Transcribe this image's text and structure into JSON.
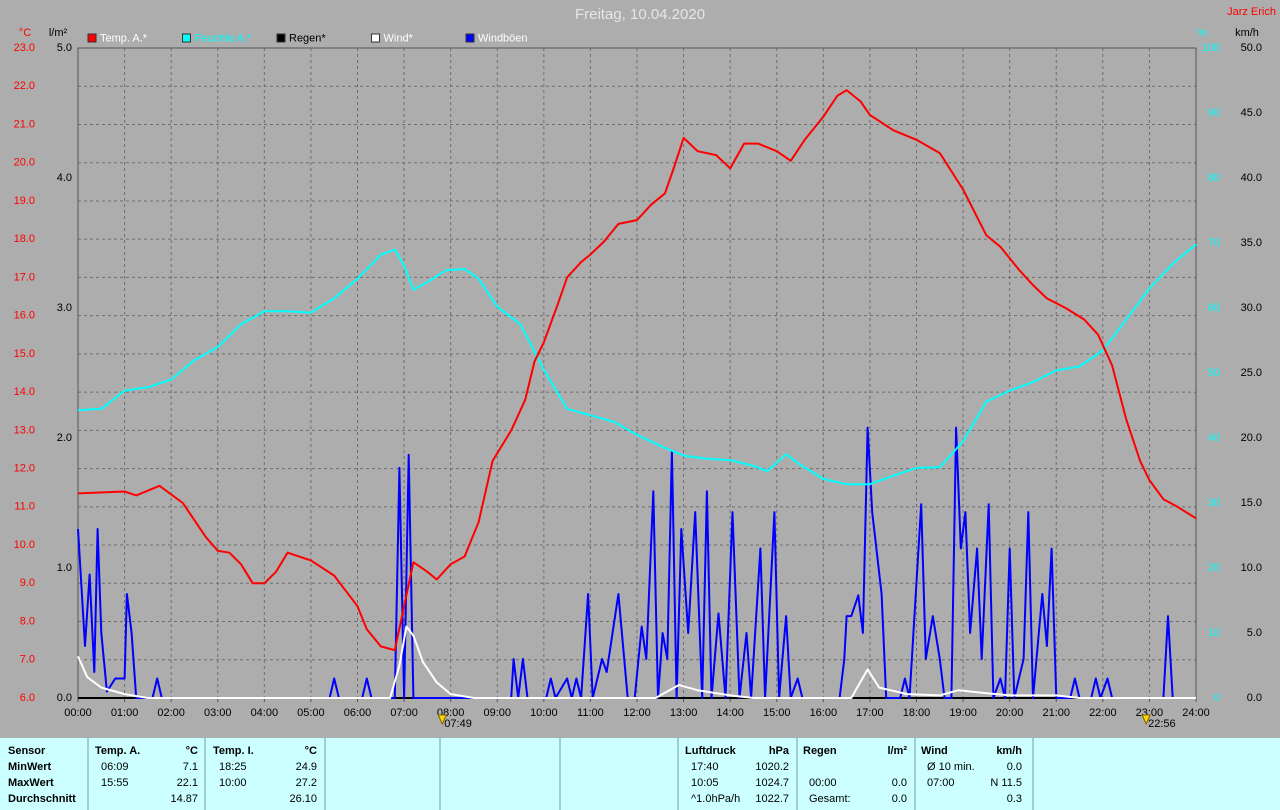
{
  "chart_data": {
    "type": "line",
    "title": "Freitag, 10.04.2020",
    "author": "Jarz Erich",
    "ylabel": "°C",
    "y2label": "l/m²",
    "y3label": "%",
    "y4label": "km/h",
    "xlim": [
      0,
      24
    ],
    "xticks": [
      {
        "value": 0,
        "label": "00:00"
      },
      {
        "value": 1,
        "label": "01:00"
      },
      {
        "value": 2,
        "label": "02:00"
      },
      {
        "value": 3,
        "label": "03:00"
      },
      {
        "value": 4,
        "label": "04:00"
      },
      {
        "value": 5,
        "label": "05:00"
      },
      {
        "value": 6,
        "label": "06:00"
      },
      {
        "value": 7,
        "label": "07:00"
      },
      {
        "value": 8,
        "label": "08:00"
      },
      {
        "value": 9,
        "label": "09:00"
      },
      {
        "value": 10,
        "label": "10:00"
      },
      {
        "value": 11,
        "label": "11:00"
      },
      {
        "value": 12,
        "label": "12:00"
      },
      {
        "value": 13,
        "label": "13:00"
      },
      {
        "value": 14,
        "label": "14:00"
      },
      {
        "value": 15,
        "label": "15:00"
      },
      {
        "value": 16,
        "label": "16:00"
      },
      {
        "value": 17,
        "label": "17:00"
      },
      {
        "value": 18,
        "label": "18:00"
      },
      {
        "value": 19,
        "label": "19:00"
      },
      {
        "value": 20,
        "label": "20:00"
      },
      {
        "value": 21,
        "label": "21:00"
      },
      {
        "value": 22,
        "label": "22:00"
      },
      {
        "value": 23,
        "label": "23:00"
      },
      {
        "value": 24,
        "label": "24:00"
      }
    ],
    "ylim": [
      6,
      23
    ],
    "yticks": [
      {
        "value": 6,
        "label": "6.0"
      },
      {
        "value": 7,
        "label": "7.0"
      },
      {
        "value": 8,
        "label": "8.0"
      },
      {
        "value": 9,
        "label": "9.0"
      },
      {
        "value": 10,
        "label": "10.0"
      },
      {
        "value": 11,
        "label": "11.0"
      },
      {
        "value": 12,
        "label": "12.0"
      },
      {
        "value": 13,
        "label": "13.0"
      },
      {
        "value": 14,
        "label": "14.0"
      },
      {
        "value": 15,
        "label": "15.0"
      },
      {
        "value": 16,
        "label": "16.0"
      },
      {
        "value": 17,
        "label": "17.0"
      },
      {
        "value": 18,
        "label": "18.0"
      },
      {
        "value": 19,
        "label": "19.0"
      },
      {
        "value": 20,
        "label": "20.0"
      },
      {
        "value": 21,
        "label": "21.0"
      },
      {
        "value": 22,
        "label": "22.0"
      },
      {
        "value": 23,
        "label": "23.0"
      }
    ],
    "y2lim": [
      0,
      5
    ],
    "y2ticks": [
      {
        "value": 0,
        "label": "0.0"
      },
      {
        "value": 1,
        "label": "1.0"
      },
      {
        "value": 2,
        "label": "2.0"
      },
      {
        "value": 3,
        "label": "3.0"
      },
      {
        "value": 4,
        "label": "4.0"
      },
      {
        "value": 5,
        "label": "5.0"
      }
    ],
    "y3lim": [
      0,
      100
    ],
    "y3ticks": [
      0,
      10,
      20,
      30,
      40,
      50,
      60,
      70,
      80,
      90,
      100
    ],
    "y4lim": [
      0,
      50
    ],
    "y4ticks": [
      {
        "value": 0,
        "label": "0.0"
      },
      {
        "value": 5,
        "label": "5.0"
      },
      {
        "value": 10,
        "label": "10.0"
      },
      {
        "value": 15,
        "label": "15.0"
      },
      {
        "value": 20,
        "label": "20.0"
      },
      {
        "value": 25,
        "label": "25.0"
      },
      {
        "value": 30,
        "label": "30.0"
      },
      {
        "value": 35,
        "label": "35.0"
      },
      {
        "value": 40,
        "label": "40.0"
      },
      {
        "value": 45,
        "label": "45.0"
      },
      {
        "value": 50,
        "label": "50.0"
      }
    ],
    "grid": true,
    "series": [
      {
        "name": "Temp. A.*",
        "color": "#ff0000",
        "axis": "y",
        "x": [
          0,
          1,
          1.25,
          1.75,
          2.25,
          2.75,
          3,
          3.25,
          3.5,
          3.75,
          4,
          4.25,
          4.5,
          5,
          5.5,
          6,
          6.2,
          6.5,
          6.8,
          7,
          7.2,
          7.5,
          7.7,
          8,
          8.3,
          8.6,
          8.9,
          9.3,
          9.6,
          9.8,
          10,
          10.3,
          10.5,
          10.8,
          11,
          11.3,
          11.6,
          12,
          12.3,
          12.6,
          12.8,
          13,
          13.3,
          13.7,
          14,
          14.3,
          14.6,
          15,
          15.3,
          15.6,
          16,
          16.3,
          16.5,
          16.8,
          17,
          17.5,
          18,
          18.5,
          19,
          19.5,
          19.8,
          20.2,
          20.5,
          20.8,
          21.2,
          21.6,
          21.9,
          22.2,
          22.5,
          22.8,
          23,
          23.3,
          23.6,
          24
        ],
        "values": [
          11.35,
          11.4,
          11.3,
          11.55,
          11.1,
          10.2,
          9.85,
          9.8,
          9.5,
          9.0,
          9.0,
          9.3,
          9.8,
          9.6,
          9.2,
          8.4,
          7.8,
          7.35,
          7.25,
          8.4,
          9.55,
          9.3,
          9.1,
          9.5,
          9.7,
          10.6,
          12.2,
          13.0,
          13.8,
          14.8,
          15.3,
          16.3,
          17.0,
          17.4,
          17.6,
          17.95,
          18.4,
          18.5,
          18.9,
          19.2,
          19.9,
          20.65,
          20.3,
          20.2,
          19.85,
          20.5,
          20.5,
          20.3,
          20.05,
          20.6,
          21.2,
          21.75,
          21.9,
          21.6,
          21.25,
          20.85,
          20.6,
          20.25,
          19.3,
          18.1,
          17.8,
          17.2,
          16.8,
          16.45,
          16.2,
          15.9,
          15.5,
          14.7,
          13.3,
          12.2,
          11.7,
          11.2,
          11.0,
          10.7
        ]
      },
      {
        "name": "Feuchte A.*",
        "color": "#00ffff",
        "axis": "y3",
        "x": [
          0,
          0.5,
          1,
          1.5,
          2,
          2.5,
          3,
          3.5,
          4,
          4.5,
          5,
          5.5,
          6,
          6.5,
          6.8,
          7,
          7.2,
          7.5,
          7.9,
          8.3,
          8.6,
          9,
          9.5,
          10,
          10.5,
          11,
          11.5,
          12,
          12.5,
          13,
          13.5,
          14,
          14.5,
          14.8,
          15.2,
          15.5,
          16,
          16.5,
          17,
          17.5,
          18,
          18.5,
          19,
          19.5,
          20,
          20.5,
          21,
          21.5,
          22,
          22.5,
          23,
          23.5,
          24
        ],
        "values": [
          44.3,
          44.5,
          47.3,
          47.8,
          49,
          52,
          54,
          57.5,
          59.5,
          59.5,
          59.3,
          61.5,
          64.5,
          68.2,
          69,
          66.5,
          62.8,
          64,
          65.8,
          66,
          64.5,
          60.2,
          57.5,
          50.5,
          44.5,
          43.5,
          42.5,
          40.5,
          38.8,
          37.3,
          36.8,
          36.6,
          35.7,
          34.9,
          37.5,
          35.9,
          33.7,
          32.9,
          32.9,
          34.2,
          35.4,
          35.5,
          39.5,
          45.6,
          47.3,
          48.6,
          50.4,
          51,
          53.5,
          58.2,
          63,
          66.8,
          69.8
        ]
      },
      {
        "name": "Regen*",
        "color": "#000000",
        "axis": "y2",
        "x": [
          0,
          24
        ],
        "values": [
          0,
          0
        ]
      },
      {
        "name": "Wind*",
        "color": "#ffffff",
        "axis": "y4",
        "x": [
          0,
          0.2,
          0.5,
          1,
          1.5,
          6.7,
          6.9,
          7.05,
          7.2,
          7.4,
          7.7,
          8,
          8.5,
          12.4,
          12.9,
          13.3,
          14,
          14.5,
          16.6,
          16.95,
          17.2,
          17.8,
          18.5,
          18.9,
          19.4,
          20,
          21,
          21.5,
          24
        ],
        "values": [
          3.2,
          1.6,
          0.8,
          0.3,
          0,
          0,
          2.5,
          5.5,
          4.8,
          2.8,
          1.2,
          0.3,
          0,
          0,
          1,
          0.6,
          0.2,
          0,
          0,
          2.2,
          0.8,
          0.3,
          0.2,
          0.6,
          0.4,
          0.2,
          0.2,
          0,
          0
        ]
      },
      {
        "name": "Windböen",
        "color": "#0000ff",
        "axis": "y4",
        "x": [
          0,
          0.15,
          0.25,
          0.35,
          0.42,
          0.5,
          0.62,
          0.8,
          1.0,
          1.05,
          1.15,
          1.25,
          1.6,
          1.7,
          1.8,
          5.4,
          5.5,
          5.6,
          6.1,
          6.2,
          6.3,
          6.8,
          6.9,
          7.0,
          7.1,
          7.2,
          9.3,
          9.35,
          9.45,
          9.55,
          9.65,
          10.05,
          10.15,
          10.25,
          10.5,
          10.6,
          10.7,
          10.8,
          10.95,
          11.05,
          11.25,
          11.35,
          11.6,
          11.8,
          11.95,
          12.1,
          12.2,
          12.35,
          12.45,
          12.55,
          12.65,
          12.75,
          12.85,
          12.95,
          13.1,
          13.25,
          13.4,
          13.5,
          13.6,
          13.75,
          13.9,
          14.05,
          14.2,
          14.35,
          14.45,
          14.65,
          14.75,
          14.95,
          15.05,
          15.2,
          15.3,
          15.45,
          15.55,
          16.35,
          16.45,
          16.5,
          16.6,
          16.75,
          16.85,
          16.95,
          17.05,
          17.25,
          17.35,
          17.65,
          17.75,
          17.85,
          18.1,
          18.2,
          18.35,
          18.5,
          18.6,
          18.75,
          18.85,
          18.95,
          19.05,
          19.15,
          19.3,
          19.4,
          19.55,
          19.65,
          19.8,
          19.9,
          20.0,
          20.1,
          20.3,
          20.4,
          20.5,
          20.7,
          20.8,
          20.9,
          21.0,
          21.3,
          21.4,
          21.5,
          21.75,
          21.85,
          21.95,
          22.1,
          22.2,
          23.3,
          23.4,
          23.5,
          24
        ],
        "values": [
          13,
          4,
          9.5,
          2,
          13,
          5,
          0.5,
          1.5,
          1.5,
          8,
          5,
          0,
          0,
          1.5,
          0,
          0,
          1.5,
          0,
          0,
          1.5,
          0,
          0,
          17.7,
          0,
          18.7,
          0,
          0,
          3,
          0,
          3,
          0,
          0,
          1.5,
          0,
          1.5,
          0,
          1.5,
          0,
          8,
          0,
          3,
          2,
          8,
          0,
          0,
          5.5,
          3,
          15.9,
          0,
          5,
          3,
          19,
          0,
          13,
          5,
          14.3,
          0,
          15.9,
          0,
          6.5,
          0,
          14.3,
          0,
          5,
          0,
          11.5,
          0,
          14.3,
          0,
          6.3,
          0,
          1.5,
          0,
          0,
          3,
          6.3,
          6.3,
          7.9,
          5,
          20.8,
          14.3,
          8,
          0,
          0,
          1.5,
          0,
          14.9,
          3,
          6.3,
          3,
          0,
          0,
          20.8,
          11.5,
          14.3,
          5,
          11.5,
          3,
          14.9,
          0,
          1.5,
          0,
          11.5,
          0,
          3,
          14.3,
          0,
          8,
          4,
          11.5,
          0,
          0,
          1.5,
          0,
          0,
          1.5,
          0,
          1.5,
          0,
          0,
          6.3,
          0,
          0
        ]
      }
    ],
    "annotations": [
      {
        "text": "07:49",
        "x": 7.82
      },
      {
        "text": "22:56",
        "x": 22.93
      }
    ]
  },
  "table": {
    "header": [
      "Sensor",
      "Temp. A.",
      "°C",
      "Temp. I.",
      "°C",
      "Luftdruck",
      "hPa",
      "Regen",
      "l/m²",
      "Wind",
      "km/h"
    ],
    "rows": [
      [
        "MinWert",
        "06:09",
        "7.1",
        "18:25",
        "24.9",
        "17:40",
        "1020.2",
        null,
        null,
        "Ø 10 min.",
        "0.0"
      ],
      [
        "MaxWert",
        "15:55",
        "22.1",
        "10:00",
        "27.2",
        "10:05",
        "1024.7",
        "00:00",
        "0.0",
        "07:00",
        "N 11.5"
      ],
      [
        "Durchschnitt",
        null,
        "14.87",
        null,
        "26.10",
        "^1.0hPa/h",
        "1022.7",
        "Gesamt:",
        "0.0",
        null,
        "0.3"
      ]
    ]
  }
}
